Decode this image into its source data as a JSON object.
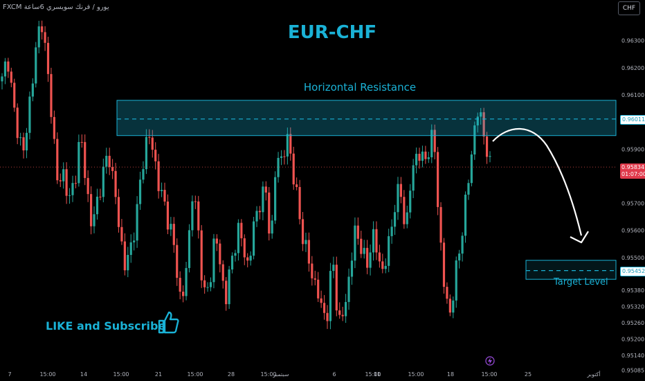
{
  "header": {
    "broker": "FXCM",
    "pair_name": "يورو / فرنك سويسري",
    "interval": "6ساعة"
  },
  "currency_button": "CHF",
  "timer": "01:07:00",
  "annotations": {
    "title": "EUR-CHF",
    "resistance_label": "Horizontal Resistance",
    "target_label": "Target Level",
    "cta": "LIKE and Subscribe",
    "resistance_price": "0.96011",
    "target_price": "0.95452",
    "current_price": "0.95834"
  },
  "colors": {
    "background": "#000000",
    "up": "#26a69a",
    "down": "#ef5350",
    "accent": "#1ab2d6",
    "arrow": "#ffffff"
  },
  "icons": [
    "thumbs-up-icon",
    "lightning-icon",
    "curved-arrow-icon"
  ],
  "chart_data": {
    "type": "candlestick",
    "title": "EUR-CHF",
    "xlabel": "",
    "ylabel": "",
    "ylim": [
      0.9505,
      0.9645
    ],
    "y_ticks": [
      "0.96300",
      "0.96200",
      "0.96100",
      "0.95900",
      "0.95700",
      "0.95600",
      "0.95500",
      "0.95380",
      "0.95320",
      "0.95260",
      "0.95200",
      "0.95140",
      "0.95085"
    ],
    "x_ticks": [
      "7",
      "15:00",
      "14",
      "15:00",
      "21",
      "15:00",
      "28",
      "15:00",
      "سبتمبر",
      "6",
      "15:00",
      "11",
      "15:00",
      "18",
      "15:00",
      "25",
      "أكتوبر"
    ],
    "resistance_zone": [
      0.9595,
      0.9608
    ],
    "resistance_level": 0.96011,
    "target_zone": [
      0.9542,
      0.9549
    ],
    "target_level": 0.95452,
    "current_price": 0.95834,
    "close_path": [
      0.9615,
      0.9625,
      0.9605,
      0.9595,
      0.9588,
      0.961,
      0.9625,
      0.964,
      0.962,
      0.96,
      0.9575,
      0.9582,
      0.957,
      0.958,
      0.9595,
      0.9578,
      0.956,
      0.9572,
      0.958,
      0.959,
      0.9575,
      0.956,
      0.9545,
      0.9555,
      0.9565,
      0.9585,
      0.9595,
      0.959,
      0.9575,
      0.957,
      0.956,
      0.955,
      0.953,
      0.955,
      0.9575,
      0.956,
      0.9535,
      0.954,
      0.956,
      0.9545,
      0.9535,
      0.955,
      0.956,
      0.9555,
      0.9545,
      0.9565,
      0.957,
      0.9575,
      0.9555,
      0.959,
      0.9585,
      0.9595,
      0.958,
      0.9565,
      0.9555,
      0.9545,
      0.954,
      0.953,
      0.953,
      0.955,
      0.9525,
      0.953,
      0.9545,
      0.956,
      0.9555,
      0.9545,
      0.956,
      0.955,
      0.9545,
      0.9555,
      0.957,
      0.9575,
      0.956,
      0.958,
      0.959,
      0.9585,
      0.959,
      0.9595,
      0.956,
      0.9535,
      0.953,
      0.9545,
      0.956,
      0.9575,
      0.9595,
      0.9605,
      0.9595,
      0.9583
    ]
  }
}
